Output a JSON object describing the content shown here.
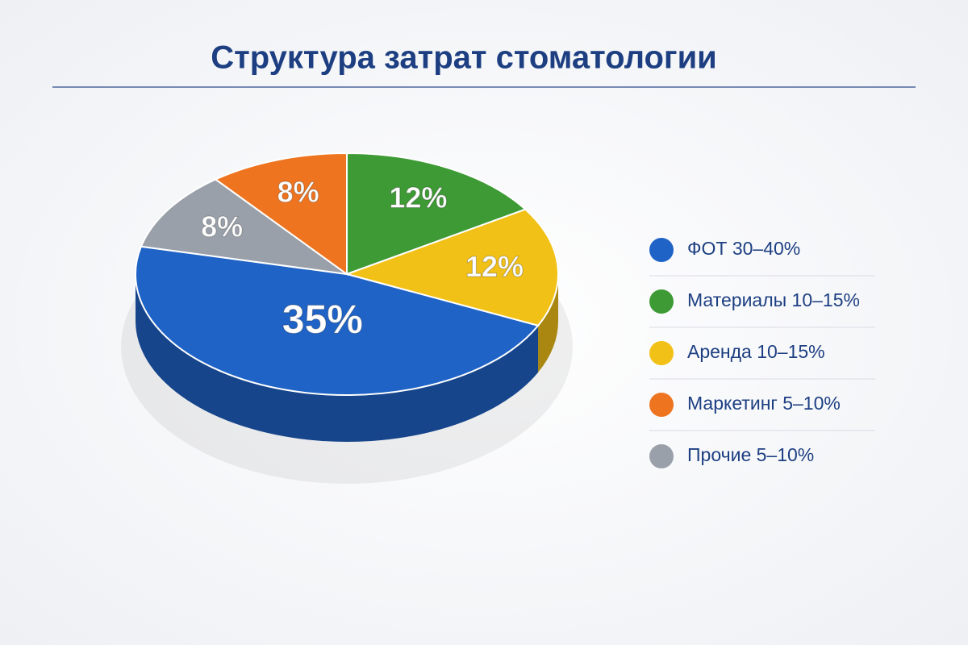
{
  "chart_data": {
    "type": "pie3d",
    "title": "Структура затрат стоматологии",
    "series": [
      {
        "name": "ФОТ 30–40%",
        "color": "#1f63c6",
        "values": [
          35
        ],
        "value_labels": [
          "35%"
        ]
      },
      {
        "name": "Материалы 10–15%",
        "color": "#3e9a35",
        "values": [
          12
        ],
        "value_labels": [
          "12%"
        ]
      },
      {
        "name": "Аренда 10–15%",
        "color": "#f2c117",
        "values": [
          12
        ],
        "value_labels": [
          "12%"
        ]
      },
      {
        "name": "Маркетинг 5–10%",
        "color": "#ee7420",
        "values": [
          8
        ],
        "value_labels": [
          "8%"
        ]
      },
      {
        "name": "Прочие 5–10%",
        "color": "#9aa0aa",
        "values": [
          8
        ],
        "value_labels": [
          "8%"
        ]
      }
    ],
    "legend": "right"
  }
}
